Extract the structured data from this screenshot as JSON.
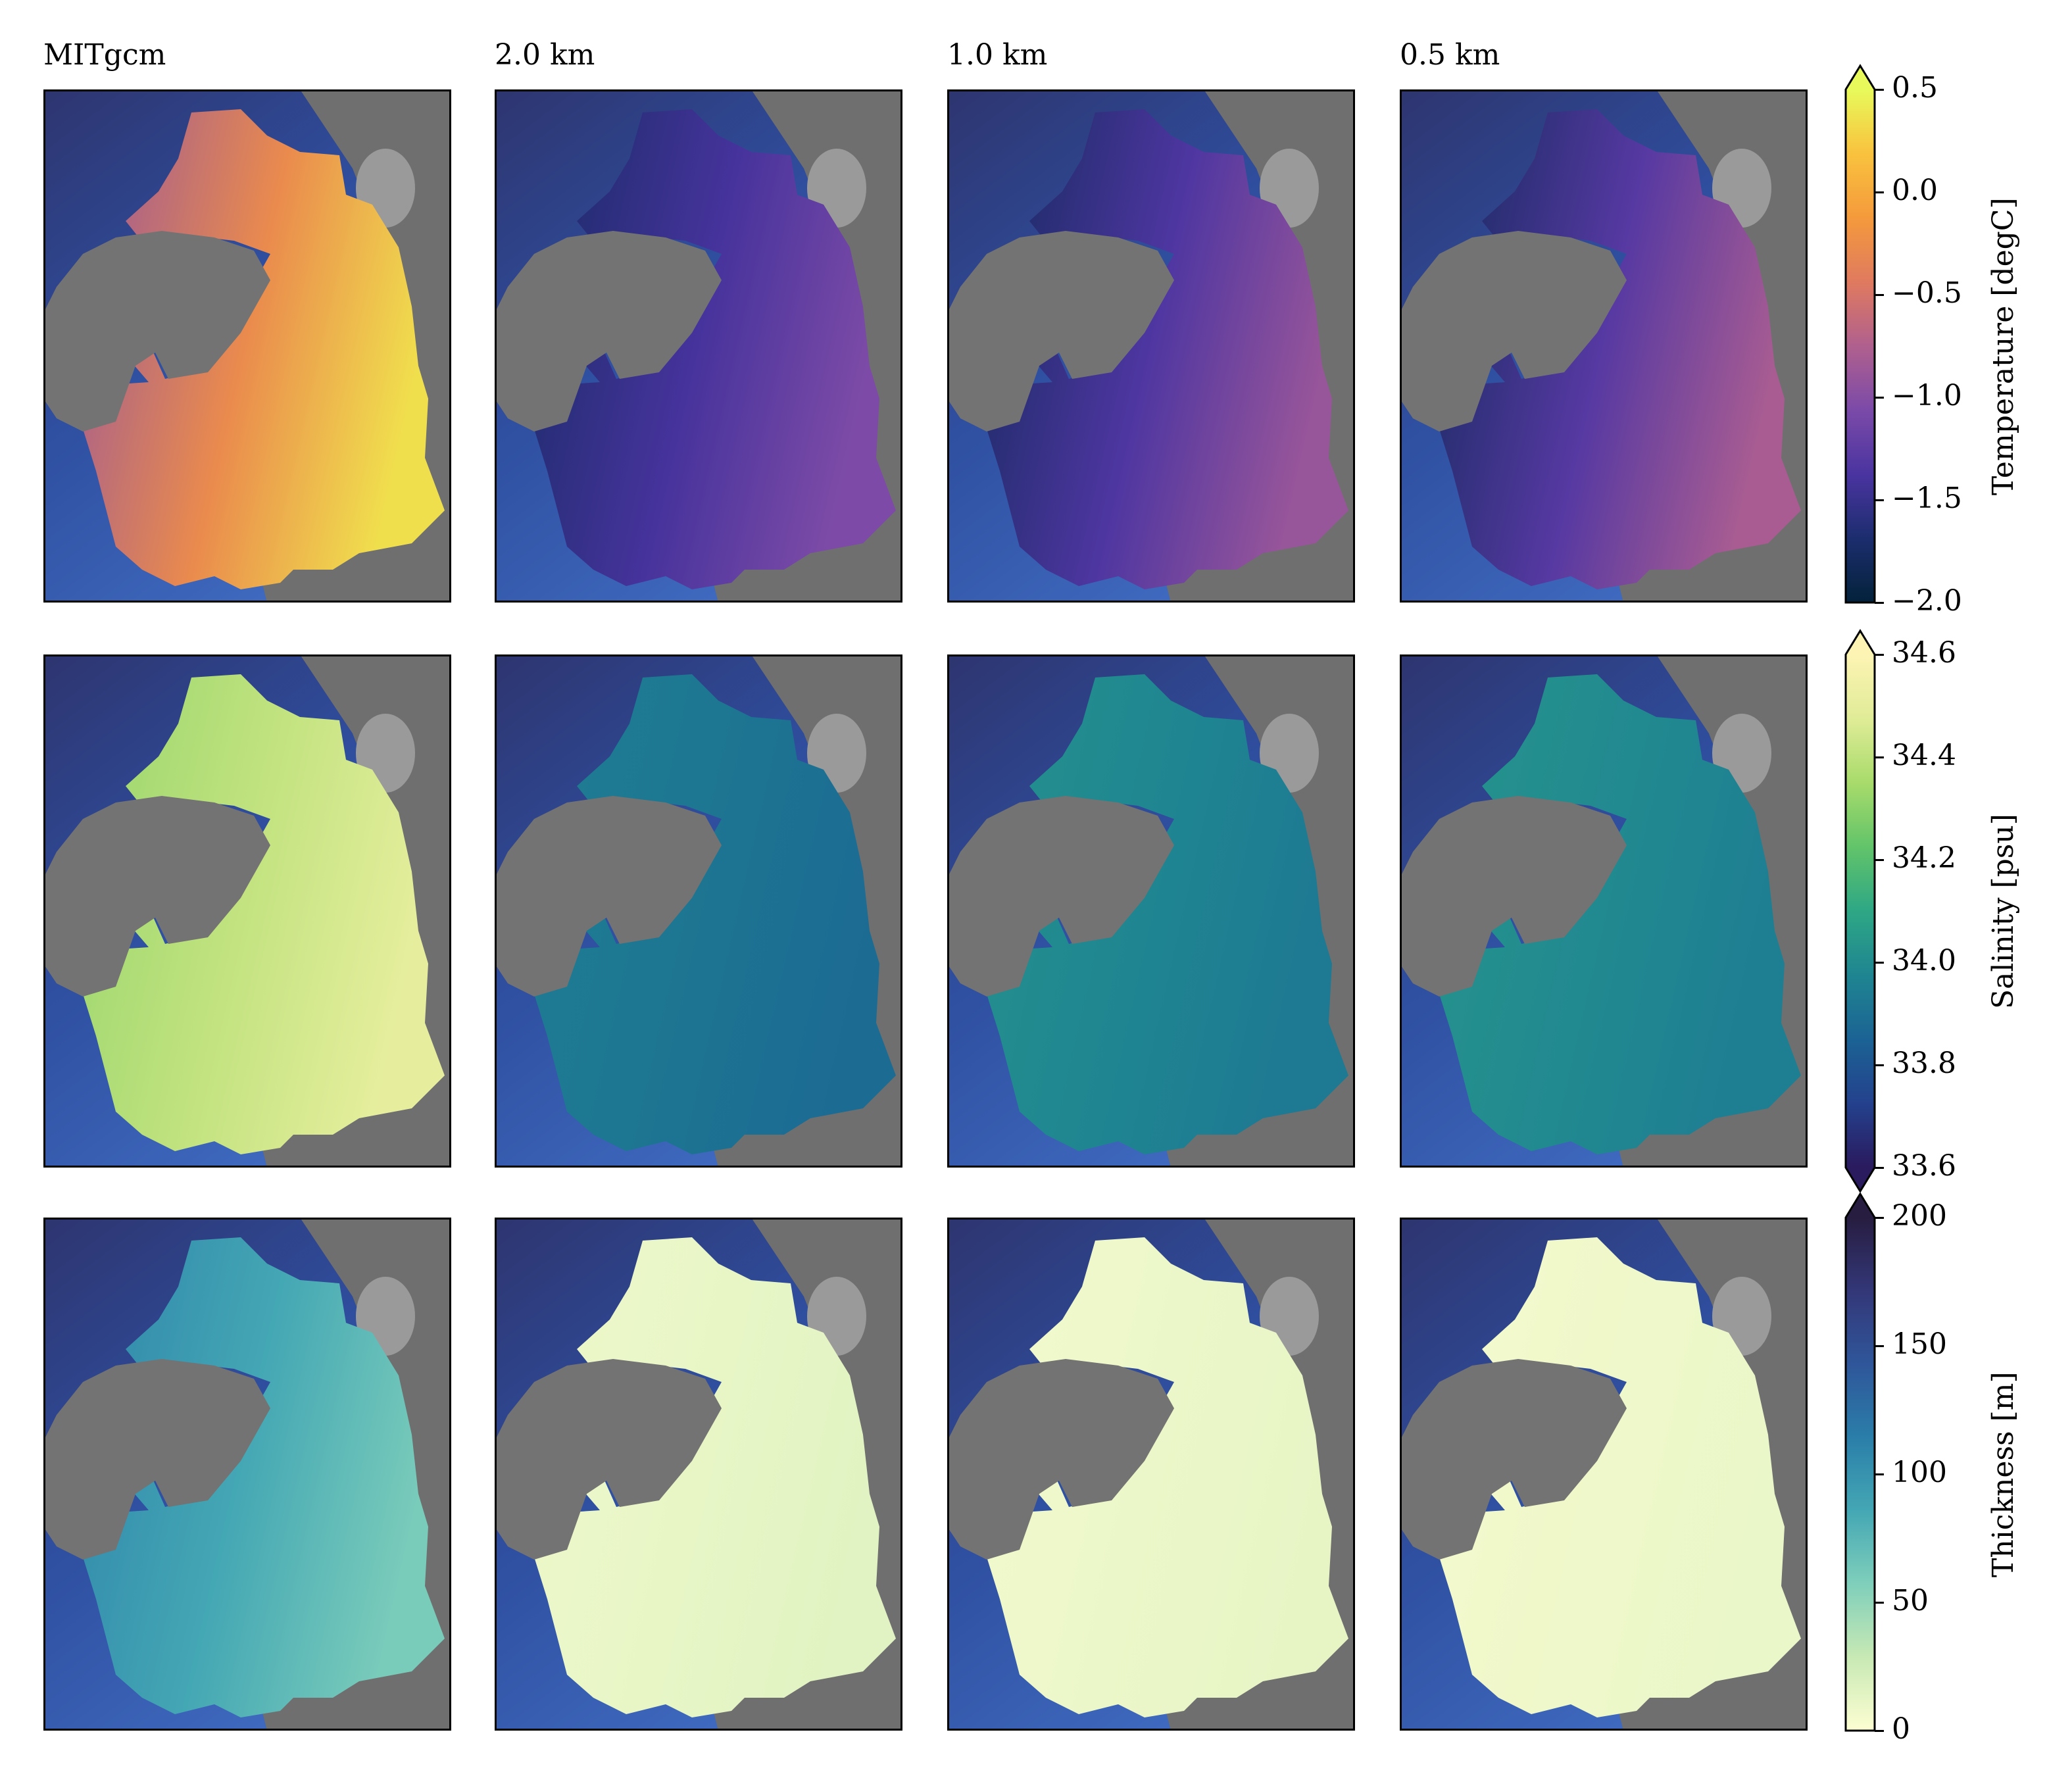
{
  "columns": [
    "MITgcm",
    "2.0 km",
    "1.0 km",
    "0.5 km"
  ],
  "chart_data": [
    {
      "type": "heatmap",
      "row": 0,
      "variable": "temperature",
      "colorbar": {
        "label": "Temperature [degC]",
        "range": [
          -2.0,
          0.5
        ],
        "ticks": [
          -2.0,
          -1.5,
          -1.0,
          -0.5,
          0.0,
          0.5
        ],
        "tick_labels": [
          "−2.0",
          "−1.5",
          "−1.0",
          "−0.5",
          "0.0",
          "0.5"
        ],
        "extend": "max",
        "colors": [
          "#03223a",
          "#1c2d6e",
          "#4a34a0",
          "#7b4aa8",
          "#b0608e",
          "#e07a5f",
          "#f49a3c",
          "#f9c23e",
          "#e8fa5b"
        ]
      },
      "panel_values": {
        "MITgcm": {
          "base": -0.9,
          "east": 0.35
        },
        "2.0 km": {
          "base": -1.75,
          "east": -1.05
        },
        "1.0 km": {
          "base": -1.8,
          "east": -0.9
        },
        "0.5 km": {
          "base": -1.8,
          "east": -0.8
        }
      }
    },
    {
      "type": "heatmap",
      "row": 1,
      "variable": "salinity",
      "colorbar": {
        "label": "Salinity [psu]",
        "range": [
          33.6,
          34.6
        ],
        "ticks": [
          33.6,
          33.8,
          34.0,
          34.2,
          34.4,
          34.6
        ],
        "tick_labels": [
          "33.6",
          "33.8",
          "34.0",
          "34.2",
          "34.4",
          "34.6"
        ],
        "extend": "both",
        "colors": [
          "#2a1a5e",
          "#24418d",
          "#1b6394",
          "#1f8591",
          "#2ea785",
          "#62c46a",
          "#a8db6b",
          "#e0ec97",
          "#fdf4b4"
        ]
      },
      "panel_values": {
        "MITgcm": {
          "base": 34.32,
          "east": 34.5
        },
        "2.0 km": {
          "base": 33.95,
          "east": 33.88
        },
        "1.0 km": {
          "base": 34.02,
          "east": 33.93
        },
        "0.5 km": {
          "base": 34.03,
          "east": 33.95
        }
      }
    },
    {
      "type": "heatmap",
      "row": 2,
      "variable": "thickness",
      "colorbar": {
        "label": "Thickness [m]",
        "range": [
          0,
          200
        ],
        "ticks": [
          0,
          50,
          100,
          150,
          200
        ],
        "tick_labels": [
          "0",
          "50",
          "100",
          "150",
          "200"
        ],
        "extend": "max",
        "colors": [
          "#fdfed2",
          "#c8e9b4",
          "#7fcfbb",
          "#44a7b4",
          "#2a7ea9",
          "#2f569a",
          "#333778",
          "#271d40"
        ]
      },
      "panel_values": {
        "MITgcm": {
          "base": 110,
          "east": 60
        },
        "2.0 km": {
          "base": 8,
          "east": 15
        },
        "1.0 km": {
          "base": 6,
          "east": 12
        },
        "0.5 km": {
          "base": 5,
          "east": 10
        }
      }
    }
  ]
}
